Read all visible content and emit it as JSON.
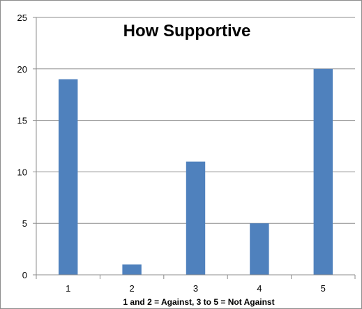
{
  "chart_data": {
    "type": "bar",
    "title": "How Supportive",
    "xlabel": "1 and 2 = Against, 3 to 5 = Not Against",
    "ylabel": "",
    "categories": [
      "1",
      "2",
      "3",
      "4",
      "5"
    ],
    "values": [
      19,
      1,
      11,
      5,
      20
    ],
    "ylim": [
      0,
      25
    ],
    "yticks": [
      "0",
      "5",
      "10",
      "15",
      "20",
      "25"
    ],
    "grid": true,
    "legend": "none",
    "bar_color": "#4F81BD",
    "grid_color": "#8C8C8C"
  }
}
